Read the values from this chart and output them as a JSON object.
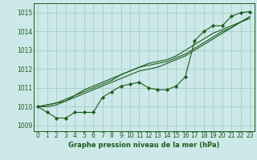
{
  "xlabel": "Graphe pression niveau de la mer (hPa)",
  "background_color": "#cce8e8",
  "grid_color": "#aacccc",
  "line_color": "#1a5c1a",
  "xlim": [
    -0.5,
    23.5
  ],
  "ylim": [
    1008.7,
    1015.5
  ],
  "yticks": [
    1009,
    1010,
    1011,
    1012,
    1013,
    1014,
    1015
  ],
  "xticks": [
    0,
    1,
    2,
    3,
    4,
    5,
    6,
    7,
    8,
    9,
    10,
    11,
    12,
    13,
    14,
    15,
    16,
    17,
    18,
    19,
    20,
    21,
    22,
    23
  ],
  "series": [
    [
      1010.0,
      1009.7,
      1009.4,
      1009.4,
      1009.7,
      1009.7,
      1009.7,
      1010.5,
      1010.8,
      1011.1,
      1011.2,
      1011.3,
      1011.0,
      1010.9,
      1010.9,
      1011.1,
      1011.6,
      1013.5,
      1014.0,
      1014.3,
      1014.3,
      1014.8,
      1015.0,
      1015.05
    ],
    [
      1010.0,
      1010.0,
      1010.1,
      1010.3,
      1010.6,
      1010.9,
      1011.1,
      1011.3,
      1011.5,
      1011.7,
      1011.9,
      1012.1,
      1012.3,
      1012.4,
      1012.5,
      1012.7,
      1013.0,
      1013.3,
      1013.6,
      1013.9,
      1014.1,
      1014.3,
      1014.5,
      1014.7
    ],
    [
      1010.0,
      1010.1,
      1010.2,
      1010.3,
      1010.5,
      1010.7,
      1010.9,
      1011.1,
      1011.3,
      1011.5,
      1011.7,
      1011.9,
      1012.0,
      1012.1,
      1012.3,
      1012.5,
      1012.7,
      1013.0,
      1013.3,
      1013.6,
      1013.9,
      1014.2,
      1014.5,
      1014.8
    ],
    [
      1010.0,
      1010.1,
      1010.2,
      1010.4,
      1010.6,
      1010.8,
      1011.0,
      1011.2,
      1011.4,
      1011.7,
      1011.9,
      1012.1,
      1012.2,
      1012.3,
      1012.4,
      1012.6,
      1012.8,
      1013.1,
      1013.4,
      1013.7,
      1014.0,
      1014.2,
      1014.5,
      1014.7
    ]
  ],
  "marker_series_idx": 0,
  "marker": "D",
  "marker_size": 2.2,
  "tick_fontsize": 5.5,
  "xlabel_fontsize": 6.0
}
